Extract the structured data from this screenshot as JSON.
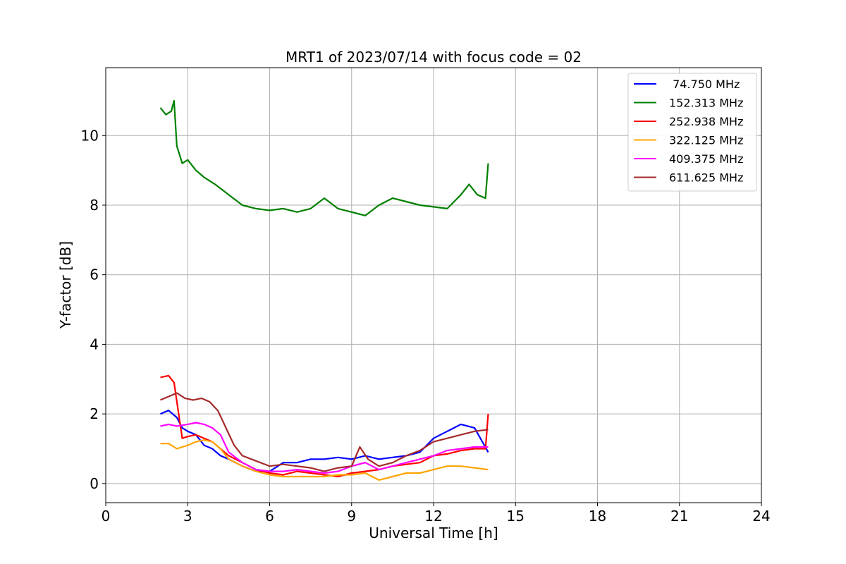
{
  "chart_data": {
    "type": "line",
    "title": "MRT1 of 2023/07/14 with focus code = 02",
    "xlabel": "Universal Time [h]",
    "ylabel": "Y-factor [dB]",
    "xlim": [
      0,
      24
    ],
    "ylim": [
      -0.55,
      11.95
    ],
    "xticks": [
      0,
      3,
      6,
      9,
      12,
      15,
      18,
      21,
      24
    ],
    "yticks": [
      0,
      2,
      4,
      6,
      8,
      10
    ],
    "grid": true,
    "legend_position": "top-right",
    "series": [
      {
        "name": " 74.750 MHz",
        "color": "#0000ff",
        "x": [
          2.0,
          2.3,
          2.6,
          2.8,
          3.0,
          3.3,
          3.6,
          3.9,
          4.2,
          4.5,
          5.0,
          5.5,
          6.0,
          6.5,
          7.0,
          7.5,
          8.0,
          8.5,
          9.0,
          9.5,
          10.0,
          10.5,
          11.0,
          11.5,
          12.0,
          12.5,
          13.0,
          13.5,
          14.0
        ],
        "y": [
          2.0,
          2.1,
          1.9,
          1.6,
          1.5,
          1.4,
          1.1,
          1.0,
          0.8,
          0.7,
          0.5,
          0.35,
          0.35,
          0.6,
          0.6,
          0.7,
          0.7,
          0.75,
          0.7,
          0.8,
          0.7,
          0.75,
          0.8,
          0.9,
          1.3,
          1.5,
          1.7,
          1.6,
          0.9
        ]
      },
      {
        "name": "152.313 MHz",
        "color": "#008000",
        "x": [
          2.0,
          2.2,
          2.4,
          2.5,
          2.6,
          2.8,
          3.0,
          3.3,
          3.6,
          4.0,
          4.5,
          5.0,
          5.5,
          6.0,
          6.5,
          7.0,
          7.5,
          8.0,
          8.5,
          9.0,
          9.5,
          10.0,
          10.5,
          11.0,
          11.5,
          12.0,
          12.5,
          13.0,
          13.3,
          13.6,
          13.9,
          14.0
        ],
        "y": [
          10.8,
          10.6,
          10.7,
          11.0,
          9.7,
          9.2,
          9.3,
          9.0,
          8.8,
          8.6,
          8.3,
          8.0,
          7.9,
          7.85,
          7.9,
          7.8,
          7.9,
          8.2,
          7.9,
          7.8,
          7.7,
          8.0,
          8.2,
          8.1,
          8.0,
          7.95,
          7.9,
          8.3,
          8.6,
          8.3,
          8.2,
          9.2
        ]
      },
      {
        "name": "252.938 MHz",
        "color": "#ff0000",
        "x": [
          2.0,
          2.3,
          2.5,
          2.8,
          3.0,
          3.3,
          3.6,
          3.9,
          4.2,
          4.5,
          5.0,
          5.5,
          6.0,
          6.5,
          7.0,
          7.5,
          8.0,
          8.5,
          9.0,
          9.5,
          10.0,
          10.5,
          11.0,
          11.5,
          12.0,
          12.5,
          13.0,
          13.5,
          13.9,
          14.0
        ],
        "y": [
          3.05,
          3.1,
          2.9,
          1.3,
          1.35,
          1.4,
          1.3,
          1.2,
          1.0,
          0.8,
          0.6,
          0.4,
          0.3,
          0.25,
          0.35,
          0.3,
          0.25,
          0.2,
          0.3,
          0.35,
          0.4,
          0.5,
          0.55,
          0.6,
          0.8,
          0.85,
          0.95,
          1.0,
          1.0,
          2.0
        ]
      },
      {
        "name": "322.125 MHz",
        "color": "#ffa500",
        "x": [
          2.0,
          2.3,
          2.6,
          3.0,
          3.3,
          3.6,
          3.9,
          4.2,
          4.5,
          5.0,
          5.5,
          6.0,
          6.5,
          7.0,
          7.5,
          8.0,
          8.5,
          9.0,
          9.5,
          10.0,
          10.5,
          11.0,
          11.5,
          12.0,
          12.5,
          13.0,
          13.5,
          14.0
        ],
        "y": [
          1.15,
          1.15,
          1.0,
          1.1,
          1.2,
          1.25,
          1.2,
          1.0,
          0.7,
          0.5,
          0.35,
          0.25,
          0.2,
          0.2,
          0.2,
          0.2,
          0.25,
          0.25,
          0.3,
          0.1,
          0.2,
          0.3,
          0.3,
          0.4,
          0.5,
          0.5,
          0.45,
          0.4
        ]
      },
      {
        "name": "409.375 MHz",
        "color": "#ff00ff",
        "x": [
          2.0,
          2.3,
          2.6,
          3.0,
          3.3,
          3.6,
          3.9,
          4.2,
          4.5,
          5.0,
          5.5,
          6.0,
          6.5,
          7.0,
          7.5,
          8.0,
          8.5,
          9.0,
          9.5,
          10.0,
          10.5,
          11.0,
          11.5,
          12.0,
          12.5,
          13.0,
          13.5,
          14.0
        ],
        "y": [
          1.65,
          1.7,
          1.65,
          1.7,
          1.75,
          1.7,
          1.6,
          1.4,
          0.9,
          0.6,
          0.4,
          0.35,
          0.35,
          0.4,
          0.35,
          0.3,
          0.35,
          0.5,
          0.6,
          0.4,
          0.5,
          0.6,
          0.7,
          0.8,
          0.95,
          1.0,
          1.05,
          1.05
        ]
      },
      {
        "name": "611.625 MHz",
        "color": "#a52a2a",
        "x": [
          2.0,
          2.3,
          2.6,
          2.9,
          3.2,
          3.5,
          3.8,
          4.1,
          4.4,
          4.7,
          5.0,
          5.5,
          6.0,
          6.5,
          7.0,
          7.5,
          8.0,
          8.5,
          9.0,
          9.3,
          9.6,
          10.0,
          10.5,
          11.0,
          11.5,
          12.0,
          12.5,
          13.0,
          13.5,
          14.0
        ],
        "y": [
          2.4,
          2.5,
          2.6,
          2.45,
          2.4,
          2.45,
          2.35,
          2.1,
          1.6,
          1.1,
          0.8,
          0.65,
          0.5,
          0.55,
          0.5,
          0.45,
          0.35,
          0.45,
          0.5,
          1.05,
          0.7,
          0.5,
          0.6,
          0.8,
          0.95,
          1.2,
          1.3,
          1.4,
          1.5,
          1.55
        ]
      }
    ]
  }
}
